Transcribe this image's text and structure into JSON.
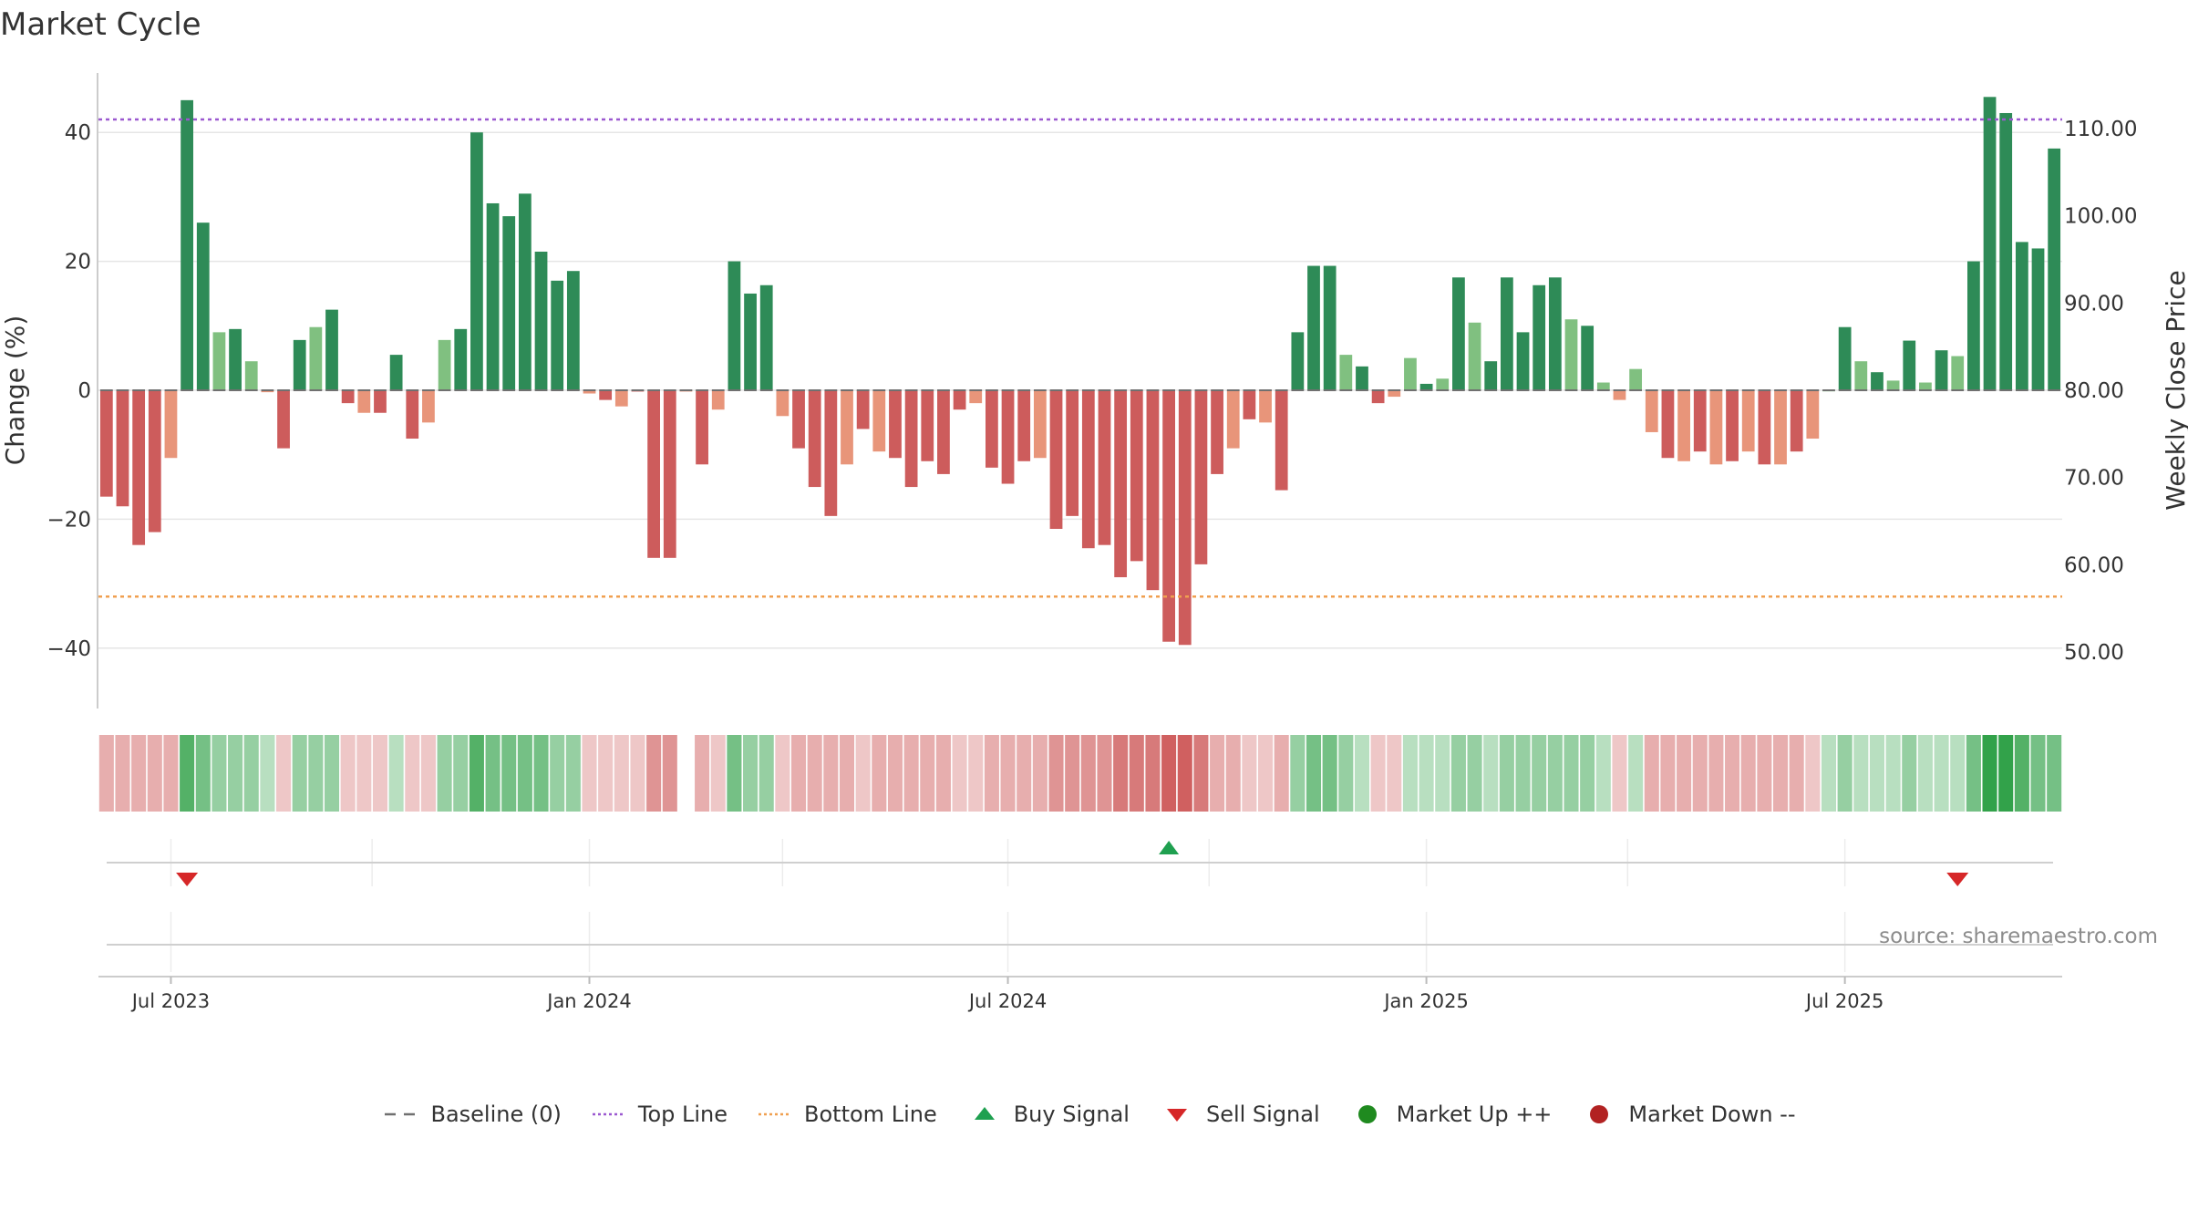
{
  "chart_data": {
    "type": "bar",
    "title": "Market Cycle",
    "ylabel": "Change (%)",
    "y2label": "Weekly Close Price",
    "source": "source: sharemaestro.com",
    "ylim": [
      -49,
      49
    ],
    "y2lim": [
      44.8,
      122.5
    ],
    "yticks": [
      {
        "value": 40,
        "label": "40"
      },
      {
        "value": 20,
        "label": "20"
      },
      {
        "value": 0,
        "label": "0"
      },
      {
        "value": -20,
        "label": "−20"
      },
      {
        "value": -40,
        "label": "−40"
      }
    ],
    "y2ticks": [
      {
        "value": 110,
        "label": "110.00"
      },
      {
        "value": 100,
        "label": "100.00"
      },
      {
        "value": 90,
        "label": "90.00"
      },
      {
        "value": 80,
        "label": "80.00"
      },
      {
        "value": 70,
        "label": "70.00"
      },
      {
        "value": 60,
        "label": "60.00"
      },
      {
        "value": 50,
        "label": "50.00"
      }
    ],
    "top_line": 42,
    "bottom_line": -32,
    "baseline": 0,
    "xticks": [
      {
        "label": "Jul 2023",
        "week": 4
      },
      {
        "label": "Jan 2024",
        "week": 30
      },
      {
        "label": "Jul 2024",
        "week": 56
      },
      {
        "label": "Jan 2025",
        "week": 82
      },
      {
        "label": "Jul 2025",
        "week": 108
      }
    ],
    "values": [
      -16.5,
      -18,
      -24,
      -22,
      -10.5,
      45,
      26,
      9,
      9.5,
      4.5,
      -0.3,
      -9,
      7.8,
      9.8,
      12.5,
      -2,
      -3.5,
      -3.5,
      5.5,
      -7.5,
      -5,
      7.8,
      9.5,
      40,
      29,
      27,
      30.5,
      21.5,
      17,
      18.5,
      -0.5,
      -1.5,
      -2.5,
      -0.2,
      -26,
      -26,
      -0.2,
      -11.5,
      -3,
      20,
      15,
      16.3,
      -4,
      -9,
      -15,
      -19.5,
      -11.5,
      -6,
      -9.5,
      -10.5,
      -15,
      -11,
      -13,
      -3,
      -2,
      -12,
      -14.5,
      -11,
      -10.5,
      -21.5,
      -19.5,
      -24.5,
      -24,
      -29,
      -26.5,
      -31,
      -39,
      -39.5,
      -27,
      -13,
      -9,
      -4.5,
      -5,
      -15.5,
      9,
      19.3,
      19.3,
      5.5,
      3.7,
      -2,
      -1,
      5,
      1,
      1.8,
      17.5,
      10.5,
      4.5,
      17.5,
      9,
      16.3,
      17.5,
      11,
      10,
      1.2,
      -1.5,
      3.3,
      -6.5,
      -10.5,
      -11,
      -9.5,
      -11.5,
      -11,
      -9.5,
      -11.5,
      -11.5,
      -9.5,
      -7.5,
      0,
      9.8,
      4.5,
      2.8,
      1.5,
      7.7,
      1.2,
      6.2,
      5.3,
      20,
      45.5,
      43,
      23,
      22,
      37.5
    ],
    "regime_values": [
      -2,
      -2,
      -2,
      -2,
      -2,
      4,
      3,
      2,
      2,
      2,
      1,
      -1,
      2,
      2,
      2,
      -1,
      -1,
      -1,
      1,
      -1,
      -1,
      2,
      2,
      4,
      3,
      3,
      3,
      3,
      2,
      2,
      -1,
      -1,
      -1,
      -1,
      -3,
      -3,
      0,
      -2,
      -1,
      3,
      2,
      2,
      -1,
      -2,
      -2,
      -2,
      -2,
      -1,
      -2,
      -2,
      -2,
      -2,
      -2,
      -1,
      -1,
      -2,
      -2,
      -2,
      -2,
      -3,
      -3,
      -3,
      -3,
      -4,
      -4,
      -4,
      -5,
      -5,
      -4,
      -2,
      -2,
      -1,
      -1,
      -2,
      2,
      3,
      3,
      2,
      1,
      -1,
      -1,
      1,
      1,
      1,
      2,
      2,
      1,
      2,
      2,
      2,
      2,
      2,
      2,
      1,
      -1,
      1,
      -2,
      -2,
      -2,
      -2,
      -2,
      -2,
      -2,
      -2,
      -2,
      -2,
      -1,
      1,
      2,
      1,
      1,
      1,
      2,
      1,
      1,
      1,
      3,
      5,
      5,
      4,
      3,
      3
    ],
    "buy_signals_week": [
      66
    ],
    "sell_signals_week": [
      5,
      115
    ],
    "legend": [
      {
        "label": "Baseline (0)",
        "symbol": "dash",
        "color": "#707070"
      },
      {
        "label": "Top Line",
        "symbol": "dot",
        "color": "#9b59d0"
      },
      {
        "label": "Bottom Line",
        "symbol": "dot",
        "color": "#f0a050"
      },
      {
        "label": "Buy Signal",
        "symbol": "triangle-up",
        "color": "#1fa050"
      },
      {
        "label": "Sell Signal",
        "symbol": "triangle-down",
        "color": "#d62728"
      },
      {
        "label": "Market Up ++",
        "symbol": "circle",
        "color": "#1f8a1f"
      },
      {
        "label": "Market Down --",
        "symbol": "circle",
        "color": "#b22222"
      }
    ],
    "colors": {
      "strong_up": "#2e8b57",
      "up": "#80c080",
      "strong_down": "#cd5c5c",
      "down": "#e8957a",
      "top_line": "#9b59d0",
      "bottom_line": "#f0a050"
    }
  }
}
